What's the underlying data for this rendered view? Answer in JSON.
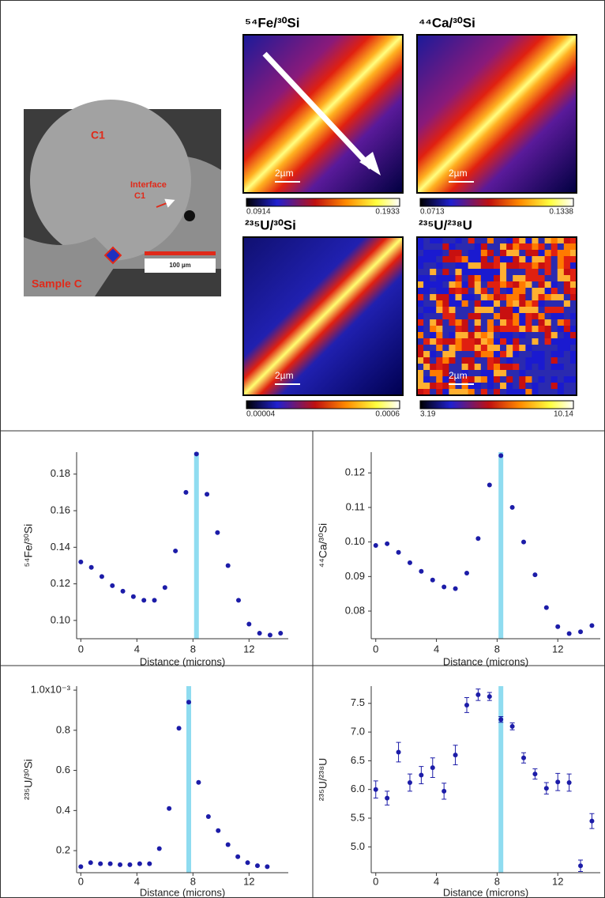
{
  "sem": {
    "region": "C1",
    "interface": [
      "Interface",
      "C1"
    ],
    "sample": "Sample C",
    "scale": "100 µm"
  },
  "maps": [
    {
      "title": "⁵⁴Fe/³⁰Si",
      "min": "0.0914",
      "max": "0.1933",
      "scale": "2µm"
    },
    {
      "title": "⁴⁴Ca/³⁰Si",
      "min": "0.0713",
      "max": "0.1338",
      "scale": "2µm"
    },
    {
      "title": "²³⁵U/³⁰Si",
      "min": "0.00004",
      "max": "0.0006",
      "scale": "2µm"
    },
    {
      "title": "²³⁵U/²³⁸U",
      "min": "3.19",
      "max": "10.14",
      "scale": "2µm"
    }
  ],
  "chart_data": [
    {
      "type": "scatter",
      "y_label": "⁵⁴Fe/³⁰Si",
      "x_label": "Distance (microns)",
      "color": "#1c1ca8",
      "highlight_x": 8.25,
      "highlight_color": "#8fdcf0",
      "x": [
        0,
        0.75,
        1.5,
        2.25,
        3,
        3.75,
        4.5,
        5.25,
        6,
        6.75,
        7.5,
        8.25,
        9,
        9.75,
        10.5,
        11.25,
        12,
        12.75,
        13.5,
        14.25
      ],
      "values": [
        0.132,
        0.129,
        0.124,
        0.119,
        0.116,
        0.113,
        0.111,
        0.111,
        0.118,
        0.138,
        0.17,
        0.191,
        0.169,
        0.148,
        0.13,
        0.111,
        0.098,
        0.093,
        0.092,
        0.093
      ],
      "xlim": [
        -0.3,
        14.8
      ],
      "ylim": [
        0.09,
        0.192
      ],
      "xticks": [
        0,
        4,
        8,
        12
      ],
      "yticks": [
        {
          "value": 0.1,
          "label": "0.10"
        },
        0.12,
        0.14,
        0.16,
        0.18
      ]
    },
    {
      "type": "scatter",
      "y_label": "⁴⁴Ca/³⁰Si",
      "x_label": "Distance (microns)",
      "color": "#1c1ca8",
      "highlight_x": 8.25,
      "highlight_color": "#8fdcf0",
      "x": [
        0,
        0.75,
        1.5,
        2.25,
        3,
        3.75,
        4.5,
        5.25,
        6,
        6.75,
        7.5,
        8.25,
        9,
        9.75,
        10.5,
        11.25,
        12,
        12.75,
        13.5,
        14.25
      ],
      "values": [
        0.099,
        0.0995,
        0.097,
        0.094,
        0.0915,
        0.089,
        0.087,
        0.0865,
        0.091,
        0.101,
        0.1165,
        0.125,
        0.11,
        0.1,
        0.0905,
        0.081,
        0.0755,
        0.0735,
        0.074,
        0.0758
      ],
      "xlim": [
        -0.3,
        14.8
      ],
      "ylim": [
        0.072,
        0.126
      ],
      "xticks": [
        0,
        4,
        8,
        12
      ],
      "yticks": [
        0.08,
        0.09,
        {
          "value": 0.1,
          "label": "0.10"
        },
        0.11,
        0.12
      ]
    },
    {
      "type": "scatter",
      "y_label": "²³⁵U/³⁰Si",
      "x_label": "Distance (microns)",
      "color": "#1c1ca8",
      "highlight_x": 7.7,
      "highlight_color": "#8fdcf0",
      "x": [
        0,
        0.7,
        1.4,
        2.1,
        2.8,
        3.5,
        4.2,
        4.9,
        5.6,
        6.3,
        7,
        7.7,
        8.4,
        9.1,
        9.8,
        10.5,
        11.2,
        11.9,
        12.6,
        13.3
      ],
      "values": [
        0.12,
        0.14,
        0.135,
        0.135,
        0.13,
        0.13,
        0.135,
        0.135,
        0.21,
        0.41,
        0.81,
        0.94,
        0.54,
        0.37,
        0.3,
        0.23,
        0.17,
        0.14,
        0.125,
        0.12
      ],
      "xlim": [
        -0.3,
        14.8
      ],
      "ylim": [
        0.09,
        1.02
      ],
      "xticks": [
        0,
        4,
        8,
        12
      ],
      "yticks": [
        0.2,
        0.4,
        0.6,
        0.8,
        {
          "value": 1.0,
          "label": "1.0x10⁻³"
        }
      ]
    },
    {
      "type": "scatter",
      "y_label": "²³⁵U/²³⁸U",
      "x_label": "Distance (microns)",
      "color": "#1c1ca8",
      "highlight_x": 8.25,
      "highlight_color": "#8fdcf0",
      "x": [
        0,
        0.75,
        1.5,
        2.25,
        3,
        3.75,
        4.5,
        5.25,
        6,
        6.75,
        7.5,
        8.25,
        9,
        9.75,
        10.5,
        11.25,
        12,
        12.75,
        13.5,
        14.25
      ],
      "values": [
        6.0,
        5.85,
        6.65,
        6.12,
        6.25,
        6.38,
        5.97,
        6.6,
        7.47,
        7.65,
        7.62,
        7.22,
        7.1,
        6.55,
        6.27,
        6.02,
        6.13,
        6.12,
        4.67,
        5.45
      ],
      "errors": [
        0.15,
        0.12,
        0.17,
        0.15,
        0.15,
        0.17,
        0.14,
        0.17,
        0.13,
        0.1,
        0.07,
        0.05,
        0.06,
        0.09,
        0.09,
        0.1,
        0.15,
        0.15,
        0.1,
        0.13
      ],
      "xlim": [
        -0.3,
        14.8
      ],
      "ylim": [
        4.55,
        7.8
      ],
      "xticks": [
        0,
        4,
        8,
        12
      ],
      "yticks": [
        {
          "value": 5,
          "label": "5.0"
        },
        5.5,
        {
          "value": 6,
          "label": "6.0"
        },
        6.5,
        {
          "value": 7,
          "label": "7.0"
        },
        7.5
      ]
    }
  ]
}
